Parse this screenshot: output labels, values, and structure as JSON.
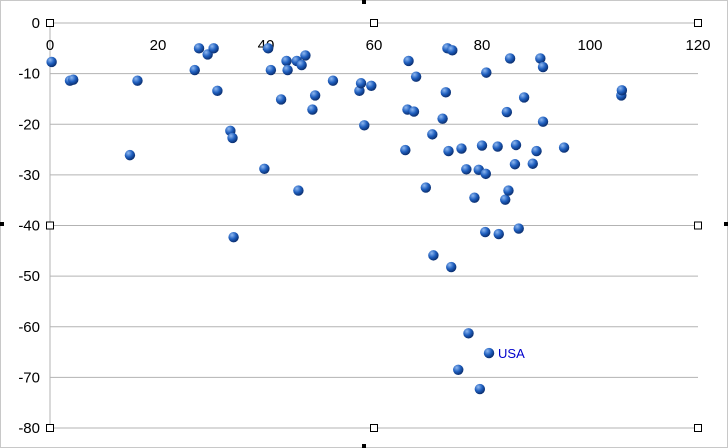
{
  "chart_data": {
    "type": "scatter",
    "title": "",
    "xlabel": "",
    "ylabel": "",
    "xlim": [
      0,
      120
    ],
    "ylim": [
      -80,
      0
    ],
    "xticks": [
      0,
      20,
      40,
      60,
      80,
      100,
      120
    ],
    "yticks": [
      0,
      -10,
      -20,
      -30,
      -40,
      -50,
      -60,
      -70,
      -80
    ],
    "grid": "horizontal",
    "legend": "none",
    "colors": {
      "point": "#1f5fbf",
      "point_highlight": "#8fb8f0",
      "label": "#0000cc",
      "grid": "#b3b3b3"
    },
    "series": [
      {
        "points": [
          [
            0.3,
            -7.7
          ],
          [
            3.7,
            -11.4
          ],
          [
            4.3,
            -11.2
          ],
          [
            14.8,
            -26.1
          ],
          [
            16.2,
            -11.4
          ],
          [
            26.8,
            -9.3
          ],
          [
            27.6,
            -5.0
          ],
          [
            29.2,
            -6.2
          ],
          [
            30.3,
            -5.0
          ],
          [
            31.0,
            -13.4
          ],
          [
            33.4,
            -21.3
          ],
          [
            33.8,
            -22.7
          ],
          [
            34.0,
            -42.3
          ],
          [
            39.7,
            -28.8
          ],
          [
            40.4,
            -5.0
          ],
          [
            40.9,
            -9.3
          ],
          [
            42.8,
            -15.1
          ],
          [
            43.8,
            -7.5
          ],
          [
            44.0,
            -9.3
          ],
          [
            45.7,
            -7.5
          ],
          [
            46.0,
            -33.1
          ],
          [
            46.6,
            -8.3
          ],
          [
            47.3,
            -6.4
          ],
          [
            48.6,
            -17.1
          ],
          [
            49.1,
            -14.3
          ],
          [
            52.4,
            -11.4
          ],
          [
            57.3,
            -13.4
          ],
          [
            57.6,
            -11.9
          ],
          [
            58.2,
            -20.2
          ],
          [
            59.5,
            -12.4
          ],
          [
            65.8,
            -25.1
          ],
          [
            66.2,
            -17.1
          ],
          [
            66.4,
            -7.5
          ],
          [
            67.4,
            -17.5
          ],
          [
            67.8,
            -10.6
          ],
          [
            69.6,
            -32.5
          ],
          [
            70.8,
            -22.0
          ],
          [
            71.0,
            -45.9
          ],
          [
            72.7,
            -18.9
          ],
          [
            73.3,
            -13.7
          ],
          [
            73.6,
            -5.0
          ],
          [
            73.8,
            -25.3
          ],
          [
            74.3,
            -48.2
          ],
          [
            74.5,
            -5.4
          ],
          [
            75.6,
            -68.5
          ],
          [
            76.2,
            -24.8
          ],
          [
            77.1,
            -28.9
          ],
          [
            77.5,
            -61.3
          ],
          [
            78.6,
            -34.5
          ],
          [
            79.4,
            -29.0
          ],
          [
            79.6,
            -72.3
          ],
          [
            80.0,
            -24.2
          ],
          [
            80.6,
            -41.3
          ],
          [
            80.7,
            -29.8
          ],
          [
            80.8,
            -9.8
          ],
          [
            81.3,
            -65.2
          ],
          [
            82.9,
            -24.4
          ],
          [
            83.1,
            -41.7
          ],
          [
            84.3,
            -34.9
          ],
          [
            84.6,
            -17.6
          ],
          [
            84.9,
            -33.1
          ],
          [
            85.2,
            -7.0
          ],
          [
            86.1,
            -27.9
          ],
          [
            86.3,
            -24.1
          ],
          [
            86.8,
            -40.6
          ],
          [
            87.8,
            -14.7
          ],
          [
            89.4,
            -27.8
          ],
          [
            90.1,
            -25.3
          ],
          [
            90.8,
            -7.0
          ],
          [
            91.3,
            -19.5
          ],
          [
            91.3,
            -8.7
          ],
          [
            95.2,
            -24.6
          ],
          [
            105.8,
            -14.3
          ],
          [
            105.9,
            -13.3
          ]
        ]
      }
    ],
    "annotations": [
      {
        "x": 81.3,
        "y": -65.2,
        "text": "USA"
      }
    ]
  }
}
